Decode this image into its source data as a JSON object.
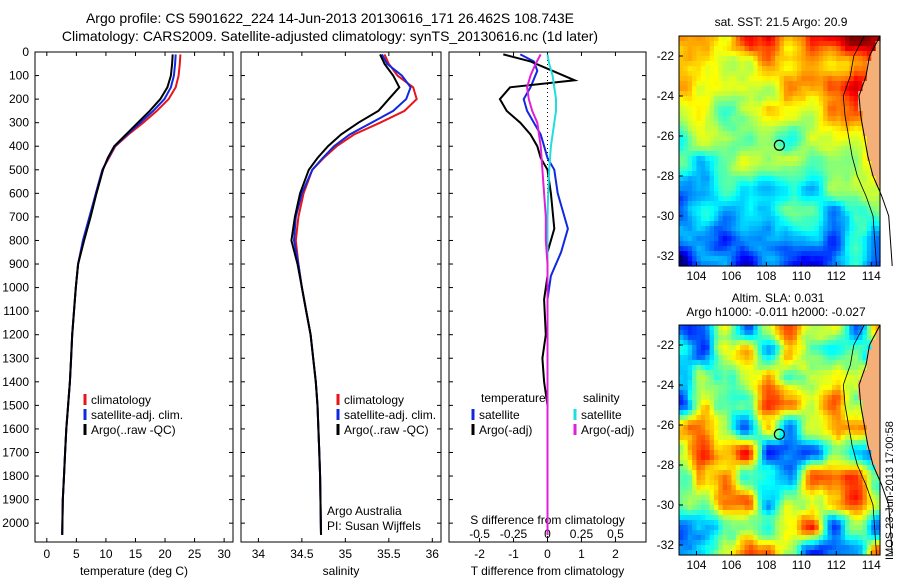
{
  "header": {
    "title_line1": "Argo profile: CS 5901622_224 14-Jun-2013 20130616_171 26.462S 108.743E",
    "title_line2": "Climatology: CARS2009. Satellite-adjusted climatology: synTS_20130616.nc (1d later)"
  },
  "side_stamp": "IMOS 23-Jun-2013 17:00:58",
  "colors": {
    "climatology": "#e8141a",
    "satellite": "#1028e0",
    "argo": "#000000",
    "satellite_salinity": "#22dddd",
    "argo_salinity": "#e020d8"
  },
  "chart_data": [
    {
      "type": "line",
      "panel": "temperature",
      "xlabel": "temperature (deg C)",
      "ylabel": "",
      "xlim": [
        -2,
        31.5
      ],
      "ylim": [
        2080,
        0
      ],
      "y_reversed": true,
      "xticks": [
        0,
        5,
        10,
        15,
        20,
        25,
        30
      ],
      "yticks": [
        0,
        100,
        200,
        300,
        400,
        500,
        600,
        700,
        800,
        900,
        1000,
        1100,
        1200,
        1300,
        1400,
        1500,
        1600,
        1700,
        1800,
        1900,
        2000
      ],
      "legend": [
        "climatology",
        "satellite-adj. clim.",
        "Argo(..raw -QC)"
      ],
      "series": [
        {
          "name": "climatology",
          "x": [
            22.6,
            22.5,
            22.3,
            21.8,
            20.6,
            18.6,
            16.3,
            13.8,
            11.6,
            10.5,
            9.4,
            8.3,
            7.3,
            6.2,
            5.3,
            4.9,
            4.6,
            4.3,
            4.1,
            3.9,
            3.6,
            3.3,
            3.1,
            2.9,
            2.7,
            2.6
          ],
          "y": [
            10,
            50,
            100,
            150,
            200,
            250,
            300,
            350,
            400,
            450,
            500,
            600,
            700,
            800,
            900,
            1000,
            1100,
            1200,
            1300,
            1400,
            1500,
            1600,
            1700,
            1800,
            1900,
            2050
          ]
        },
        {
          "name": "satellite-adj. clim.",
          "x": [
            21.8,
            21.7,
            21.5,
            21.0,
            19.9,
            18.0,
            15.8,
            13.6,
            11.5,
            10.4,
            9.4,
            8.3,
            7.2,
            6.1,
            5.3,
            4.9,
            4.6,
            4.3,
            4.1,
            3.9,
            3.6,
            3.3,
            3.1,
            2.9,
            2.7,
            2.6
          ],
          "y": [
            10,
            50,
            100,
            150,
            200,
            250,
            300,
            350,
            400,
            450,
            500,
            600,
            700,
            800,
            900,
            1000,
            1100,
            1200,
            1300,
            1400,
            1500,
            1600,
            1700,
            1800,
            1900,
            2050
          ]
        },
        {
          "name": "Argo(..raw -QC)",
          "x": [
            21.3,
            21.2,
            21.0,
            20.4,
            19.2,
            17.4,
            15.4,
            13.4,
            11.4,
            10.3,
            9.5,
            8.4,
            7.4,
            6.3,
            5.3,
            4.9,
            4.6,
            4.3,
            4.1,
            3.9,
            3.6,
            3.3,
            3.1,
            2.9,
            2.7,
            2.6
          ],
          "y": [
            10,
            50,
            100,
            150,
            200,
            250,
            300,
            350,
            400,
            450,
            500,
            600,
            700,
            800,
            900,
            1000,
            1100,
            1200,
            1300,
            1400,
            1500,
            1600,
            1700,
            1800,
            1900,
            2050
          ]
        }
      ]
    },
    {
      "type": "line",
      "panel": "salinity",
      "xlabel": "salinity",
      "ylabel": "",
      "xlim": [
        33.8,
        36.1
      ],
      "ylim": [
        2080,
        0
      ],
      "y_reversed": true,
      "xticks": [
        34,
        34.5,
        35,
        35.5,
        36
      ],
      "legend": [
        "climatology",
        "satellite-adj. clim.",
        "Argo(..raw -QC)"
      ],
      "annotations": [
        "Argo Australia",
        "PI: Susan Wijffels"
      ],
      "series": [
        {
          "name": "climatology",
          "x": [
            35.45,
            35.5,
            35.6,
            35.78,
            35.82,
            35.68,
            35.4,
            35.1,
            34.9,
            34.75,
            34.62,
            34.52,
            34.46,
            34.43,
            34.46,
            34.5,
            34.55,
            34.6,
            34.63,
            34.66,
            34.68,
            34.69,
            34.7,
            34.71,
            34.72
          ],
          "y": [
            10,
            50,
            100,
            150,
            200,
            250,
            300,
            350,
            400,
            450,
            500,
            600,
            700,
            800,
            900,
            1000,
            1100,
            1200,
            1300,
            1400,
            1500,
            1600,
            1700,
            1800,
            2050
          ]
        },
        {
          "name": "satellite-adj. clim.",
          "x": [
            35.42,
            35.48,
            35.65,
            35.75,
            35.7,
            35.55,
            35.3,
            35.05,
            34.87,
            34.74,
            34.62,
            34.5,
            34.43,
            34.41,
            34.46,
            34.5,
            34.55,
            34.6,
            34.63,
            34.66,
            34.68,
            34.69,
            34.7,
            34.71,
            34.72
          ],
          "y": [
            10,
            50,
            100,
            150,
            200,
            250,
            300,
            350,
            400,
            450,
            500,
            600,
            700,
            800,
            900,
            1000,
            1100,
            1200,
            1300,
            1400,
            1500,
            1600,
            1700,
            1800,
            2050
          ]
        },
        {
          "name": "Argo(..raw -QC)",
          "x": [
            35.4,
            35.45,
            35.55,
            35.62,
            35.5,
            35.38,
            35.15,
            34.95,
            34.8,
            34.68,
            34.58,
            34.48,
            34.42,
            34.38,
            34.45,
            34.5,
            34.55,
            34.6,
            34.63,
            34.66,
            34.68,
            34.69,
            34.7,
            34.71,
            34.72
          ],
          "y": [
            10,
            50,
            100,
            150,
            200,
            250,
            300,
            350,
            400,
            450,
            500,
            600,
            700,
            800,
            900,
            1000,
            1100,
            1200,
            1300,
            1400,
            1500,
            1600,
            1700,
            1800,
            2050
          ]
        }
      ]
    },
    {
      "type": "line",
      "panel": "difference",
      "xlabel": "T difference from climatology",
      "title_bottom": "S difference from climatology",
      "xlim": [
        -2.9,
        2.9
      ],
      "ylim": [
        2080,
        0
      ],
      "y_reversed": true,
      "xticks": [
        -2,
        -1,
        0,
        1,
        2
      ],
      "sticks_labels": [
        "-0.5",
        "-0.25",
        "0",
        "0.25",
        "0.5"
      ],
      "legend_temperature": {
        "heading": "temperature",
        "items": [
          "satellite",
          "Argo(-adj)"
        ]
      },
      "legend_salinity": {
        "heading": "salinity",
        "items": [
          "satellite",
          "Argo(-adj)"
        ]
      },
      "series": [
        {
          "name": "temperature satellite",
          "x": [
            -0.8,
            -0.4,
            -0.3,
            -0.5,
            -0.7,
            -0.6,
            -0.4,
            -0.2,
            -0.1,
            0.0,
            0.2,
            0.3,
            0.6,
            0.4,
            0.1,
            0.0,
            0.0,
            0.0,
            0.0,
            0.0,
            0.0,
            0.0,
            0.0,
            0.0
          ],
          "y": [
            10,
            40,
            80,
            150,
            200,
            250,
            300,
            350,
            400,
            450,
            500,
            600,
            750,
            850,
            950,
            1050,
            1200,
            1300,
            1400,
            1500,
            1600,
            1700,
            1800,
            2050
          ]
        },
        {
          "name": "temperature Argo(-adj)",
          "x": [
            -1.3,
            -0.5,
            0.8,
            -1.1,
            -1.4,
            -1.2,
            -0.8,
            -0.5,
            -0.3,
            -0.2,
            0.0,
            0.1,
            0.2,
            0.0,
            0.0,
            -0.1,
            -0.05,
            -0.15,
            -0.1,
            0.0,
            0.0,
            0.0,
            0.0,
            0.0
          ],
          "y": [
            10,
            40,
            120,
            150,
            200,
            250,
            300,
            350,
            400,
            450,
            500,
            600,
            750,
            850,
            950,
            1050,
            1200,
            1300,
            1400,
            1500,
            1600,
            1700,
            1800,
            2050
          ]
        },
        {
          "name": "salinity satellite",
          "x": [
            0.0,
            0.05,
            0.15,
            0.2,
            0.25,
            0.25,
            0.2,
            0.1,
            0.05,
            0.02,
            0.0,
            0.0,
            0.0,
            0.0,
            0.0,
            0.0,
            0.0,
            0.0,
            0.0,
            0.0,
            0.0
          ],
          "y": [
            10,
            50,
            100,
            150,
            200,
            250,
            300,
            400,
            500,
            600,
            700,
            800,
            900,
            1000,
            1200,
            1400,
            1600,
            1800,
            1900,
            2000,
            2050
          ]
        },
        {
          "name": "salinity Argo(-adj)",
          "x": [
            -0.2,
            -0.35,
            -0.5,
            -0.6,
            -0.55,
            -0.45,
            -0.3,
            -0.2,
            -0.15,
            -0.1,
            -0.05,
            -0.05,
            0.0,
            0.0,
            0.0,
            0.0,
            0.0,
            0.0,
            0.0,
            0.0,
            0.0
          ],
          "y": [
            10,
            50,
            100,
            150,
            200,
            250,
            300,
            400,
            500,
            600,
            700,
            800,
            900,
            1000,
            1200,
            1400,
            1600,
            1800,
            1900,
            2000,
            2050
          ]
        }
      ]
    },
    {
      "type": "heatmap",
      "panel": "sst_map",
      "title": "sat. SST: 21.5  Argo: 20.9",
      "xlim": [
        103,
        114.5
      ],
      "ylim": [
        -32.5,
        -21
      ],
      "xticks": [
        104,
        106,
        108,
        110,
        112,
        114
      ],
      "yticks": [
        -22,
        -24,
        -26,
        -28,
        -30,
        -32
      ],
      "marker": {
        "lon": 108.743,
        "lat": -26.462
      }
    },
    {
      "type": "heatmap",
      "panel": "sla_map",
      "title": "Altim. SLA: 0.031",
      "subtitle": "Argo h1000: -0.011  h2000: -0.027",
      "xlim": [
        103,
        114.5
      ],
      "ylim": [
        -32.5,
        -21
      ],
      "xticks": [
        104,
        106,
        108,
        110,
        112,
        114
      ],
      "yticks": [
        -22,
        -24,
        -26,
        -28,
        -30,
        -32
      ],
      "marker": {
        "lon": 108.743,
        "lat": -26.462
      }
    }
  ]
}
